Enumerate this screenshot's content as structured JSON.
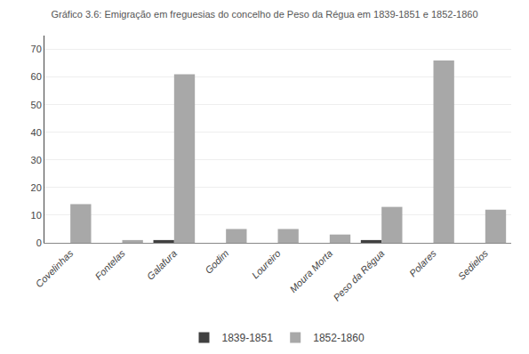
{
  "chart_data": {
    "type": "bar",
    "title": "Gráfico 3.6: Emigração em freguesias do concelho de Peso da Régua em 1839-1851 e 1852-1860",
    "categories": [
      "Covelinhas",
      "Fontelas",
      "Galafura",
      "Godim",
      "Loureiro",
      "Moura Morta",
      "Peso da Régua",
      "Polares",
      "Sedielos"
    ],
    "series": [
      {
        "name": "1839-1851",
        "color": "#404040",
        "values": [
          0,
          0,
          1,
          0,
          0,
          0,
          1,
          0,
          0
        ]
      },
      {
        "name": "1852-1860",
        "color": "#a8a8a8",
        "values": [
          14,
          1,
          61,
          5,
          5,
          3,
          13,
          66,
          12
        ]
      }
    ],
    "ylim": [
      0,
      75
    ],
    "yticks": [
      0,
      10,
      20,
      30,
      40,
      50,
      60,
      70
    ],
    "grid": true,
    "legend": "bottom"
  }
}
